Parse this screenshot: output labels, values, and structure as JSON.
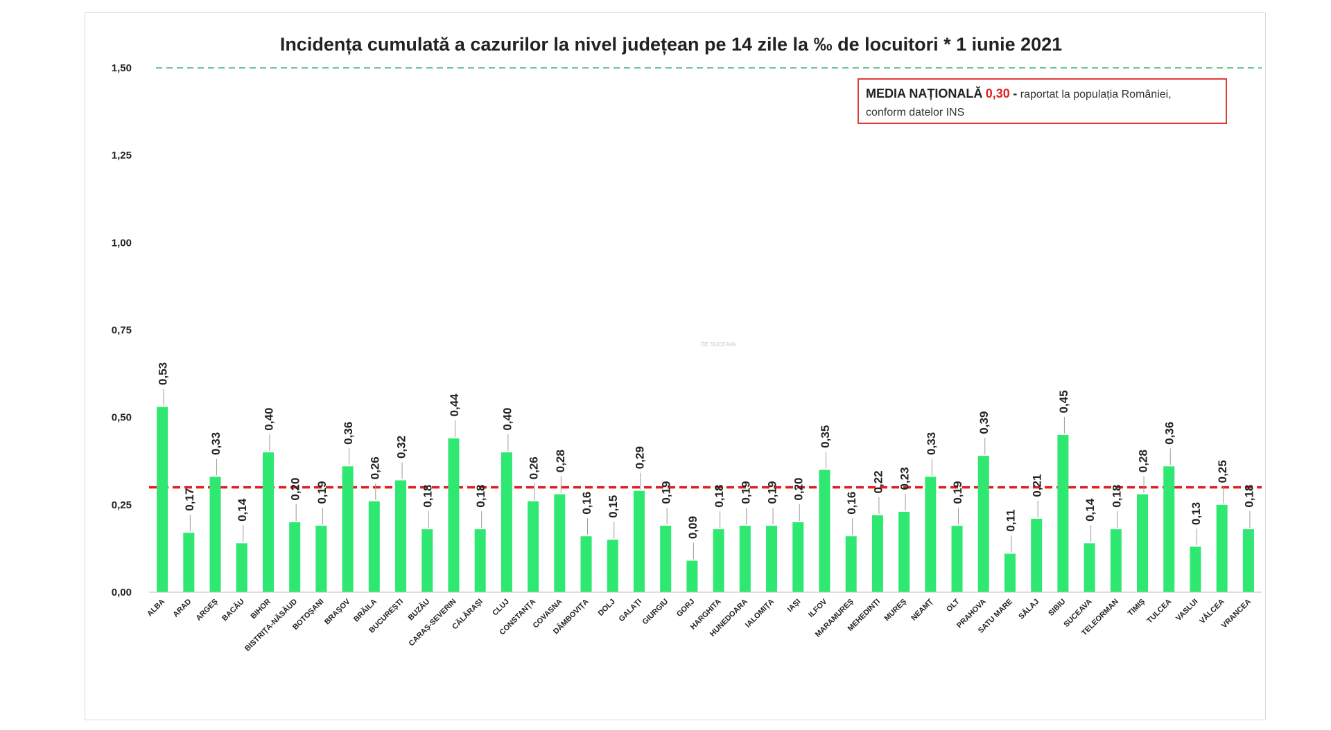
{
  "chart_data": {
    "type": "bar",
    "title": "Incidența cumulată a cazurilor la nivel județean pe 14 zile la ‰ de locuitori *  1 iunie 2021",
    "categories": [
      "ALBA",
      "ARAD",
      "ARGEȘ",
      "BACĂU",
      "BIHOR",
      "BISTRIȚA-NĂSĂUD",
      "BOTOȘANI",
      "BRAȘOV",
      "BRĂILA",
      "BUCUREȘTI",
      "BUZĂU",
      "CARAȘ-SEVERIN",
      "CĂLĂRAȘI",
      "CLUJ",
      "CONSTANȚA",
      "COVASNA",
      "DÂMBOVIȚA",
      "DOLJ",
      "GALAȚI",
      "GIURGIU",
      "GORJ",
      "HARGHITA",
      "HUNEDOARA",
      "IALOMIȚA",
      "IAȘI",
      "ILFOV",
      "MARAMUREȘ",
      "MEHEDINȚI",
      "MUREȘ",
      "NEAMȚ",
      "OLT",
      "PRAHOVA",
      "SATU MARE",
      "SĂLAJ",
      "SIBIU",
      "SUCEAVA",
      "TELEORMAN",
      "TIMIȘ",
      "TULCEA",
      "VASLUI",
      "VÂLCEA",
      "VRANCEA"
    ],
    "values": [
      0.53,
      0.17,
      0.33,
      0.14,
      0.4,
      0.2,
      0.19,
      0.36,
      0.26,
      0.32,
      0.18,
      0.44,
      0.18,
      0.4,
      0.26,
      0.28,
      0.16,
      0.15,
      0.29,
      0.19,
      0.09,
      0.18,
      0.19,
      0.19,
      0.2,
      0.35,
      0.16,
      0.22,
      0.23,
      0.33,
      0.19,
      0.39,
      0.11,
      0.21,
      0.45,
      0.14,
      0.18,
      0.28,
      0.36,
      0.13,
      0.25,
      0.18
    ],
    "data_labels": [
      "0,53",
      "0,17",
      "0,33",
      "0,14",
      "0,40",
      "0,20",
      "0,19",
      "0,36",
      "0,26",
      "0,32",
      "0,18",
      "0,44",
      "0,18",
      "0,40",
      "0,26",
      "0,28",
      "0,16",
      "0,15",
      "0,29",
      "0,19",
      "0,09",
      "0,18",
      "0,19",
      "0,19",
      "0,20",
      "0,35",
      "0,16",
      "0,22",
      "0,23",
      "0,33",
      "0,19",
      "0,39",
      "0,11",
      "0,21",
      "0,45",
      "0,14",
      "0,18",
      "0,28",
      "0,36",
      "0,13",
      "0,25",
      "0,18"
    ],
    "ylim": [
      0,
      1.5
    ],
    "yticks": [
      0,
      0.25,
      0.5,
      0.75,
      1.0,
      1.25,
      1.5
    ],
    "ytick_labels": [
      "0,00",
      "0,25",
      "0,50",
      "0,75",
      "1,00",
      "1,25",
      "1,50"
    ],
    "xlabel": "",
    "ylabel": "",
    "grid": false,
    "reference_lines": [
      {
        "value": 0.3,
        "style": "dashed",
        "color": "#e02020"
      },
      {
        "value": 1.5,
        "style": "dashed",
        "color": "#3cb371"
      }
    ],
    "bar_color": "#2ee872"
  },
  "legend_box": {
    "label": "MEDIA NAȚIONALĂ",
    "value": "0,30",
    "dash": "-",
    "text_line1": "raportat la populația României,",
    "text_line2": "conform datelor INS"
  },
  "watermark": "DE SUCEAVA"
}
